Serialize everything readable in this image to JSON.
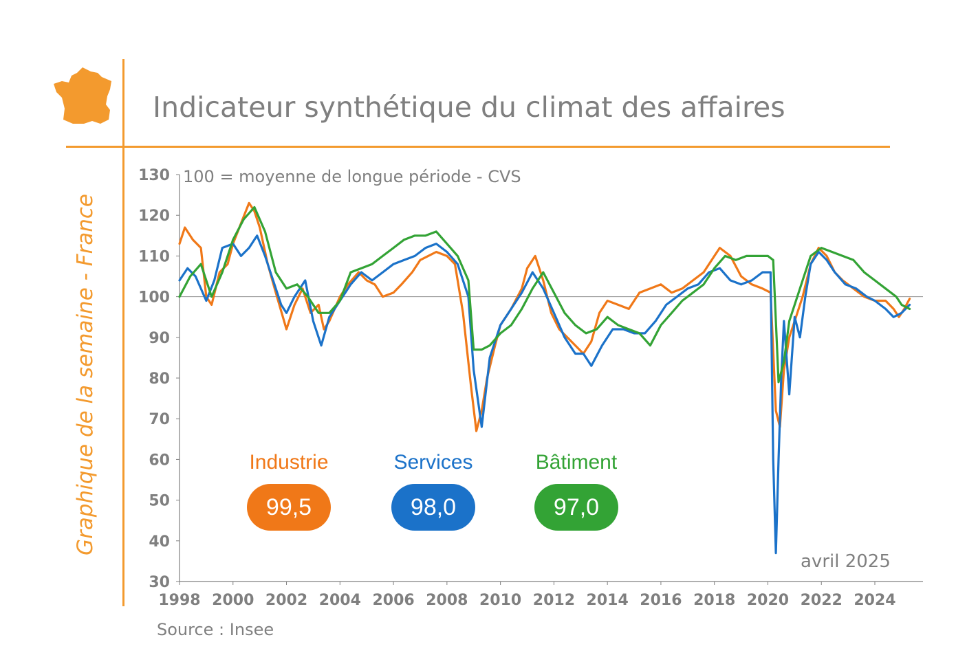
{
  "header": {
    "title": "Indicateur synthétique du climat des affaires",
    "side_label": "Graphique de la semaine - France"
  },
  "colors": {
    "accent": "#f39a2e",
    "industrie": "#f07818",
    "services": "#1b72c9",
    "batiment": "#33a335",
    "text": "#7f7f7f"
  },
  "icons": {
    "country": "france-map-icon"
  },
  "legend": [
    {
      "name": "Industrie",
      "value": "99,5"
    },
    {
      "name": "Services",
      "value": "98,0"
    },
    {
      "name": "Bâtiment",
      "value": "97,0"
    }
  ],
  "note_date": "avril 2025",
  "source": "Source : Insee",
  "chart_data": {
    "type": "line",
    "subtitle": "100 = moyenne de longue période - CVS",
    "ylim": [
      30,
      130
    ],
    "xlim": [
      1998,
      2025.8
    ],
    "y_ticks": [
      "30",
      "40",
      "50",
      "60",
      "70",
      "80",
      "90",
      "100",
      "110",
      "120",
      "130"
    ],
    "x_ticks": [
      "1998",
      "2000",
      "2002",
      "2004",
      "2006",
      "2008",
      "2010",
      "2012",
      "2014",
      "2016",
      "2018",
      "2020",
      "2022",
      "2024"
    ],
    "reference_line": 100,
    "series": [
      {
        "name": "Industrie",
        "color": "#f07818",
        "x": [
          1998.0,
          1998.2,
          1998.5,
          1998.8,
          1999.0,
          1999.2,
          1999.5,
          1999.8,
          2000.0,
          2000.3,
          2000.6,
          2000.8,
          2001.0,
          2001.3,
          2001.6,
          2002.0,
          2002.3,
          2002.6,
          2002.9,
          2003.2,
          2003.4,
          2003.6,
          2004.0,
          2004.3,
          2004.7,
          2005.0,
          2005.3,
          2005.6,
          2006.0,
          2006.3,
          2006.7,
          2007.0,
          2007.3,
          2007.6,
          2008.0,
          2008.3,
          2008.6,
          2008.9,
          2009.1,
          2009.3,
          2009.5,
          2009.8,
          2010.0,
          2010.4,
          2010.8,
          2011.0,
          2011.3,
          2011.6,
          2011.9,
          2012.2,
          2012.5,
          2012.8,
          2013.1,
          2013.4,
          2013.7,
          2014.0,
          2014.4,
          2014.8,
          2015.2,
          2015.6,
          2016.0,
          2016.4,
          2016.8,
          2017.2,
          2017.6,
          2018.0,
          2018.2,
          2018.6,
          2019.0,
          2019.4,
          2019.8,
          2020.1,
          2020.3,
          2020.45,
          2020.6,
          2020.8,
          2021.0,
          2021.3,
          2021.6,
          2021.9,
          2022.2,
          2022.5,
          2022.8,
          2023.2,
          2023.6,
          2024.0,
          2024.4,
          2024.7,
          2024.9,
          2025.1,
          2025.3
        ],
        "y": [
          113,
          117,
          114,
          112,
          100,
          98,
          106,
          108,
          113,
          118,
          123,
          121,
          117,
          108,
          101,
          92,
          98,
          102,
          96,
          98,
          92,
          94,
          100,
          103,
          106,
          104,
          103,
          100,
          101,
          103,
          106,
          109,
          110,
          111,
          110,
          108,
          96,
          78,
          67,
          72,
          80,
          88,
          93,
          97,
          102,
          107,
          110,
          104,
          96,
          92,
          90,
          88,
          86,
          89,
          96,
          99,
          98,
          97,
          101,
          102,
          103,
          101,
          102,
          104,
          106,
          110,
          112,
          110,
          105,
          103,
          102,
          101,
          72,
          68,
          82,
          90,
          94,
          100,
          108,
          112,
          110,
          106,
          104,
          102,
          100,
          99,
          99,
          97,
          95,
          97,
          99.5
        ]
      },
      {
        "name": "Services",
        "color": "#1b72c9",
        "x": [
          1998.0,
          1998.3,
          1998.6,
          1999.0,
          1999.3,
          1999.6,
          2000.0,
          2000.3,
          2000.6,
          2000.9,
          2001.2,
          2001.5,
          2001.8,
          2002.0,
          2002.3,
          2002.7,
          2003.0,
          2003.3,
          2003.6,
          2004.0,
          2004.4,
          2004.8,
          2005.2,
          2005.6,
          2006.0,
          2006.4,
          2006.8,
          2007.2,
          2007.6,
          2008.0,
          2008.4,
          2008.8,
          2009.0,
          2009.3,
          2009.6,
          2010.0,
          2010.4,
          2010.8,
          2011.2,
          2011.6,
          2012.0,
          2012.4,
          2012.8,
          2013.1,
          2013.4,
          2013.8,
          2014.2,
          2014.6,
          2015.0,
          2015.4,
          2015.8,
          2016.2,
          2016.6,
          2017.0,
          2017.4,
          2017.8,
          2018.2,
          2018.6,
          2019.0,
          2019.4,
          2019.8,
          2020.1,
          2020.2,
          2020.3,
          2020.4,
          2020.5,
          2020.6,
          2020.8,
          2021.0,
          2021.2,
          2021.4,
          2021.6,
          2021.9,
          2022.2,
          2022.5,
          2022.9,
          2023.3,
          2023.7,
          2024.0,
          2024.4,
          2024.7,
          2025.0,
          2025.3
        ],
        "y": [
          104,
          107,
          105,
          99,
          104,
          112,
          113,
          110,
          112,
          115,
          110,
          104,
          98,
          96,
          100,
          104,
          94,
          88,
          95,
          99,
          103,
          106,
          104,
          106,
          108,
          109,
          110,
          112,
          113,
          111,
          108,
          100,
          82,
          68,
          85,
          93,
          97,
          101,
          106,
          102,
          96,
          90,
          86,
          86,
          83,
          88,
          92,
          92,
          91,
          91,
          94,
          98,
          100,
          102,
          103,
          106,
          107,
          104,
          103,
          104,
          106,
          106,
          60,
          37,
          60,
          80,
          94,
          76,
          95,
          90,
          100,
          108,
          111,
          109,
          106,
          103,
          102,
          100,
          99,
          97,
          95,
          96,
          98
        ]
      },
      {
        "name": "Bâtiment",
        "color": "#33a335",
        "x": [
          1998.0,
          1998.4,
          1998.8,
          1999.2,
          1999.6,
          2000.0,
          2000.4,
          2000.8,
          2001.2,
          2001.6,
          2002.0,
          2002.4,
          2002.8,
          2003.2,
          2003.6,
          2004.0,
          2004.4,
          2004.8,
          2005.2,
          2005.6,
          2006.0,
          2006.4,
          2006.8,
          2007.2,
          2007.6,
          2008.0,
          2008.4,
          2008.8,
          2009.0,
          2009.3,
          2009.6,
          2010.0,
          2010.4,
          2010.8,
          2011.2,
          2011.6,
          2012.0,
          2012.4,
          2012.8,
          2013.2,
          2013.6,
          2014.0,
          2014.4,
          2014.8,
          2015.2,
          2015.6,
          2016.0,
          2016.4,
          2016.8,
          2017.2,
          2017.6,
          2018.0,
          2018.4,
          2018.8,
          2019.2,
          2019.6,
          2020.0,
          2020.2,
          2020.4,
          2020.6,
          2020.8,
          2021.0,
          2021.3,
          2021.6,
          2022.0,
          2022.4,
          2022.8,
          2023.2,
          2023.6,
          2024.0,
          2024.4,
          2024.8,
          2025.0,
          2025.3
        ],
        "y": [
          100,
          105,
          108,
          100,
          106,
          114,
          119,
          122,
          116,
          106,
          102,
          103,
          100,
          96,
          96,
          99,
          106,
          107,
          108,
          110,
          112,
          114,
          115,
          115,
          116,
          113,
          110,
          104,
          87,
          87,
          88,
          91,
          93,
          97,
          102,
          106,
          101,
          96,
          93,
          91,
          92,
          95,
          93,
          92,
          91,
          88,
          93,
          96,
          99,
          101,
          103,
          107,
          110,
          109,
          110,
          110,
          110,
          109,
          79,
          84,
          94,
          98,
          104,
          110,
          112,
          111,
          110,
          109,
          106,
          104,
          102,
          100,
          98,
          97
        ]
      }
    ]
  }
}
